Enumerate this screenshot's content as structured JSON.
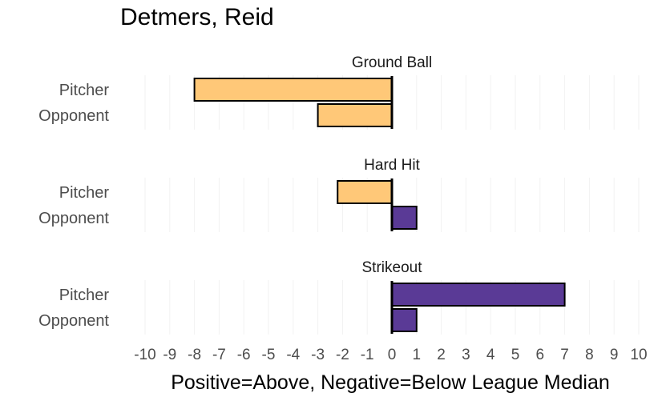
{
  "chart_data": {
    "type": "bar",
    "orientation": "horizontal",
    "title": "Detmers, Reid",
    "xlabel": "Positive=Above, Negative=Below League Median",
    "xlim": [
      -10,
      10
    ],
    "x_ticks": [
      "-10",
      "-9",
      "-8",
      "-7",
      "-6",
      "-5",
      "-4",
      "-3",
      "-2",
      "-1",
      "0",
      "1",
      "2",
      "3",
      "4",
      "5",
      "6",
      "7",
      "8",
      "9",
      "10"
    ],
    "categories": [
      "Pitcher",
      "Opponent"
    ],
    "grid": true,
    "colors": {
      "negative": "#FFC878",
      "positive": "#5A3A96"
    },
    "panels": [
      {
        "title": "Ground Ball",
        "values": [
          -8,
          -3
        ]
      },
      {
        "title": "Hard Hit",
        "values": [
          -2.2,
          1
        ]
      },
      {
        "title": "Strikeout",
        "values": [
          7,
          1
        ]
      }
    ]
  }
}
